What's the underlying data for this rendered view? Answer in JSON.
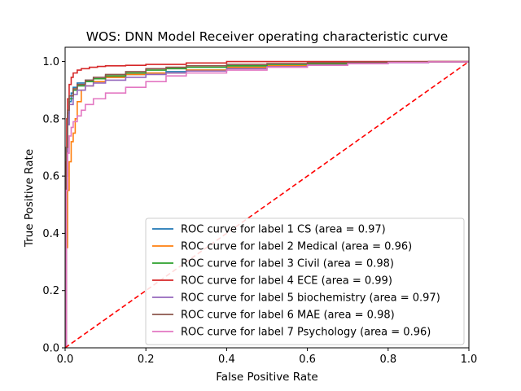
{
  "chart_data": {
    "type": "line",
    "title": "WOS: DNN Model Receiver operating characteristic curve",
    "xlabel": "False Positive Rate",
    "ylabel": "True Positive Rate",
    "xlim": [
      0.0,
      1.0
    ],
    "ylim": [
      0.0,
      1.05
    ],
    "x_ticks": [
      "0.0",
      "0.2",
      "0.4",
      "0.6",
      "0.8",
      "1.0"
    ],
    "y_ticks": [
      "0.0",
      "0.2",
      "0.4",
      "0.6",
      "0.8",
      "1.0"
    ],
    "grid": false,
    "legend_position": "lower-right",
    "series": [
      {
        "name": "ROC curve for label 1 CS (area = 0.97)",
        "color": "#1f77b4",
        "x": [
          0,
          0.002,
          0.005,
          0.01,
          0.015,
          0.02,
          0.03,
          0.05,
          0.07,
          0.1,
          0.15,
          0.2,
          0.25,
          0.3,
          0.4,
          0.5,
          0.6,
          0.7,
          0.8,
          0.9,
          1.0
        ],
        "y": [
          0,
          0.6,
          0.78,
          0.86,
          0.89,
          0.91,
          0.925,
          0.935,
          0.94,
          0.945,
          0.955,
          0.96,
          0.965,
          0.97,
          0.98,
          0.985,
          0.99,
          0.995,
          0.997,
          0.999,
          1.0
        ]
      },
      {
        "name": "ROC curve for label 2 Medical (area = 0.96)",
        "color": "#ff7f0e",
        "x": [
          0,
          0.003,
          0.006,
          0.01,
          0.015,
          0.02,
          0.025,
          0.03,
          0.04,
          0.05,
          0.07,
          0.1,
          0.15,
          0.2,
          0.3,
          0.4,
          0.5,
          0.6,
          0.7,
          0.8,
          0.9,
          1.0
        ],
        "y": [
          0,
          0.35,
          0.55,
          0.65,
          0.72,
          0.75,
          0.8,
          0.86,
          0.9,
          0.915,
          0.93,
          0.945,
          0.955,
          0.96,
          0.97,
          0.98,
          0.985,
          0.99,
          0.995,
          0.997,
          0.999,
          1.0
        ]
      },
      {
        "name": "ROC curve for label 3 Civil (area = 0.98)",
        "color": "#2ca02c",
        "x": [
          0,
          0.003,
          0.006,
          0.01,
          0.02,
          0.03,
          0.05,
          0.07,
          0.1,
          0.15,
          0.2,
          0.25,
          0.3,
          0.4,
          0.5,
          0.6,
          0.7,
          0.8,
          0.9,
          1.0
        ],
        "y": [
          0,
          0.7,
          0.82,
          0.87,
          0.9,
          0.915,
          0.93,
          0.94,
          0.95,
          0.96,
          0.97,
          0.975,
          0.98,
          0.985,
          0.99,
          0.993,
          0.996,
          0.998,
          0.999,
          1.0
        ]
      },
      {
        "name": "ROC curve for label 4 ECE (area = 0.99)",
        "color": "#d62728",
        "x": [
          0,
          0.002,
          0.004,
          0.006,
          0.01,
          0.015,
          0.02,
          0.03,
          0.04,
          0.06,
          0.08,
          0.1,
          0.15,
          0.2,
          0.3,
          0.4,
          0.5,
          0.6,
          0.7,
          0.8,
          0.9,
          1.0
        ],
        "y": [
          0,
          0.65,
          0.8,
          0.87,
          0.92,
          0.945,
          0.96,
          0.97,
          0.975,
          0.98,
          0.983,
          0.985,
          0.987,
          0.99,
          0.995,
          1.0,
          1.0,
          1.0,
          1.0,
          1.0,
          1.0,
          1.0
        ]
      },
      {
        "name": "ROC curve for label 5 biochemistry (area = 0.97)",
        "color": "#9467bd",
        "x": [
          0,
          0.003,
          0.006,
          0.01,
          0.02,
          0.03,
          0.05,
          0.07,
          0.1,
          0.15,
          0.2,
          0.25,
          0.3,
          0.4,
          0.5,
          0.6,
          0.7,
          0.8,
          0.9,
          1.0
        ],
        "y": [
          0,
          0.6,
          0.78,
          0.85,
          0.885,
          0.9,
          0.915,
          0.925,
          0.935,
          0.945,
          0.955,
          0.96,
          0.967,
          0.975,
          0.982,
          0.988,
          0.993,
          0.996,
          0.999,
          1.0
        ]
      },
      {
        "name": "ROC curve for label 6 MAE (area = 0.98)",
        "color": "#8c564b",
        "x": [
          0,
          0.003,
          0.006,
          0.01,
          0.02,
          0.03,
          0.05,
          0.07,
          0.1,
          0.15,
          0.2,
          0.25,
          0.3,
          0.4,
          0.5,
          0.6,
          0.7,
          0.8,
          0.9,
          1.0
        ],
        "y": [
          0,
          0.7,
          0.83,
          0.88,
          0.905,
          0.92,
          0.935,
          0.945,
          0.955,
          0.965,
          0.975,
          0.98,
          0.985,
          0.99,
          0.993,
          0.996,
          0.998,
          0.999,
          1.0,
          1.0
        ]
      },
      {
        "name": "ROC curve for label 7 Psychology  (area = 0.96)",
        "color": "#e377c2",
        "x": [
          0,
          0.003,
          0.006,
          0.01,
          0.015,
          0.02,
          0.03,
          0.04,
          0.05,
          0.07,
          0.1,
          0.15,
          0.2,
          0.25,
          0.3,
          0.4,
          0.5,
          0.6,
          0.7,
          0.8,
          0.9,
          1.0
        ],
        "y": [
          0,
          0.55,
          0.68,
          0.74,
          0.77,
          0.79,
          0.81,
          0.83,
          0.85,
          0.87,
          0.89,
          0.91,
          0.93,
          0.95,
          0.96,
          0.97,
          0.98,
          0.987,
          0.993,
          0.997,
          0.999,
          1.0
        ]
      }
    ],
    "reference_line": {
      "style": "dashed",
      "color": "#ff0000",
      "x": [
        0,
        1
      ],
      "y": [
        0,
        1
      ]
    }
  }
}
